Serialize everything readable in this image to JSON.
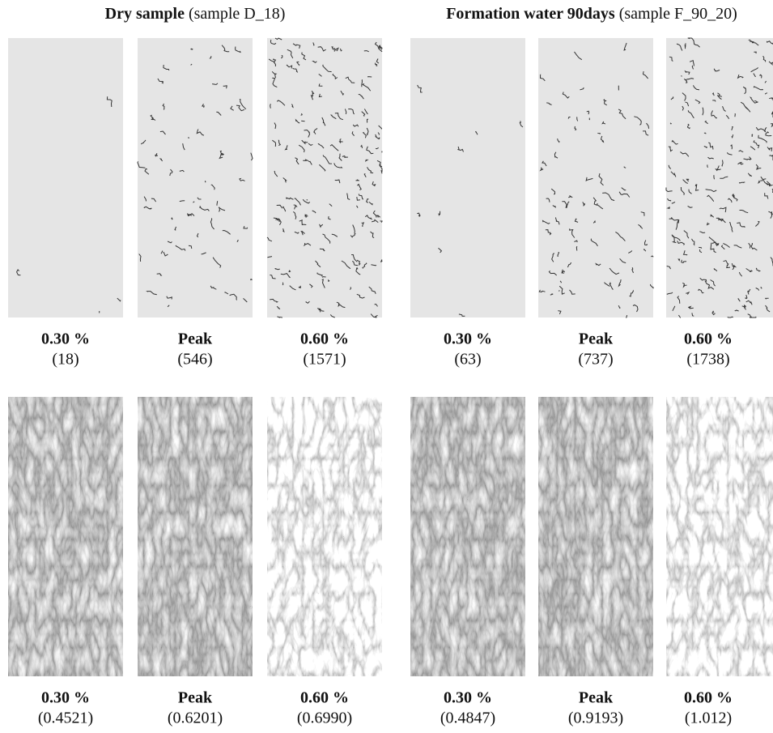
{
  "groups": [
    {
      "title": "Dry sample",
      "subtitle": "(sample D_18)",
      "top": [
        {
          "label": "0.30 %",
          "value": "(18)"
        },
        {
          "label": "Peak",
          "value": "(546)"
        },
        {
          "label": "0.60 %",
          "value": "(1571)"
        }
      ],
      "bottom": [
        {
          "label": "0.30 %",
          "value": "(0.4521)"
        },
        {
          "label": "Peak",
          "value": "(0.6201)"
        },
        {
          "label": "0.60 %",
          "value": "(0.6990)"
        }
      ]
    },
    {
      "title": "Formation water 90days",
      "subtitle": "(sample F_90_20)",
      "top": [
        {
          "label": "0.30 %",
          "value": "(63)"
        },
        {
          "label": "Peak",
          "value": "(737)"
        },
        {
          "label": "0.60 %",
          "value": "(1738)"
        }
      ],
      "bottom": [
        {
          "label": "0.30 %",
          "value": "(0.4847)"
        },
        {
          "label": "Peak",
          "value": "(0.9193)"
        },
        {
          "label": "0.60 %",
          "value": "(1.012)"
        }
      ]
    }
  ]
}
